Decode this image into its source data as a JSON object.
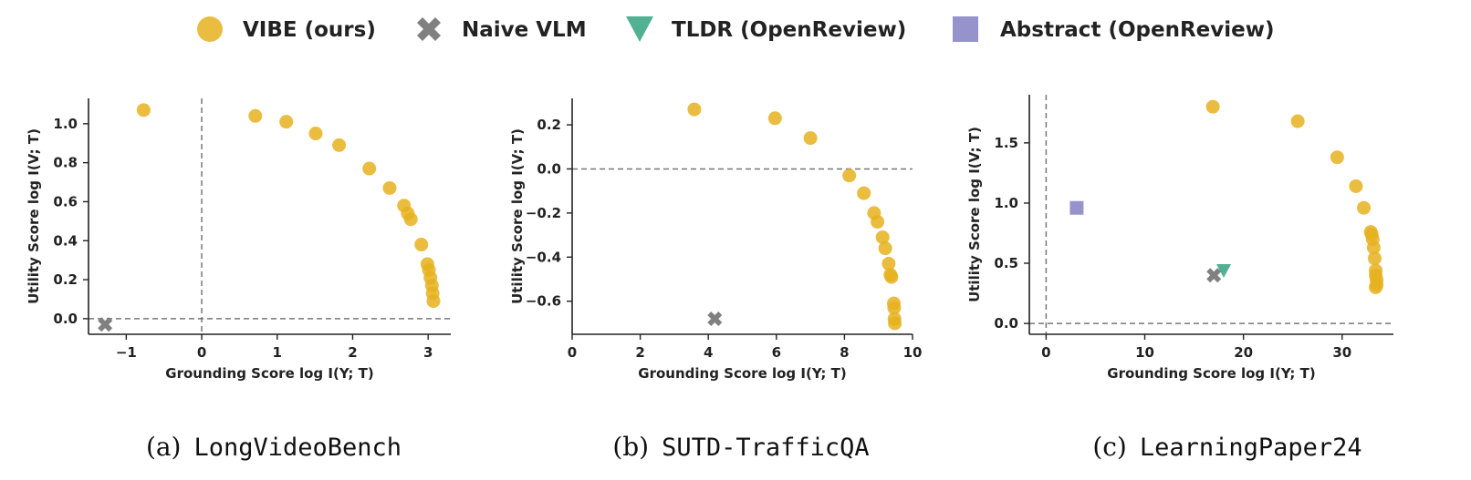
{
  "legend": [
    {
      "label": "VIBE (ours)",
      "marker": "circle",
      "color": "#E6B21E"
    },
    {
      "label": "Naive VLM",
      "marker": "x",
      "color": "#808080"
    },
    {
      "label": "TLDR (OpenReview)",
      "marker": "triangle-down",
      "color": "#3FA886"
    },
    {
      "label": "Abstract (OpenReview)",
      "marker": "square",
      "color": "#8A86C6"
    }
  ],
  "chart_data": [
    {
      "type": "scatter",
      "caption_prefix": "(a)",
      "caption_name": "LongVideoBench",
      "xlabel": "Grounding Score log I(Y; T)",
      "ylabel": "Utility Score log I(V; T)",
      "xlim": [
        -1.5,
        3.3
      ],
      "ylim": [
        -0.08,
        1.13
      ],
      "xticks": [
        -1,
        0,
        1,
        2,
        3
      ],
      "xtick_labels": [
        "−1",
        "0",
        "1",
        "2",
        "3"
      ],
      "yticks": [
        0.0,
        0.2,
        0.4,
        0.6,
        0.8,
        1.0
      ],
      "ytick_labels": [
        "0.0",
        "0.2",
        "0.4",
        "0.6",
        "0.8",
        "1.0"
      ],
      "refline_x": 0,
      "refline_y": 0,
      "grid": false,
      "series": [
        {
          "name": "VIBE (ours)",
          "marker": "circle",
          "x": [
            -0.77,
            0.71,
            1.12,
            1.51,
            1.82,
            2.22,
            2.49,
            2.68,
            2.73,
            2.77,
            2.91,
            2.99,
            3.01,
            3.03,
            3.05,
            3.06,
            3.07
          ],
          "y": [
            1.07,
            1.04,
            1.01,
            0.95,
            0.89,
            0.77,
            0.67,
            0.58,
            0.54,
            0.51,
            0.38,
            0.28,
            0.25,
            0.21,
            0.17,
            0.13,
            0.09
          ]
        },
        {
          "name": "Naive VLM",
          "marker": "x",
          "x": [
            -1.28
          ],
          "y": [
            -0.03
          ]
        }
      ]
    },
    {
      "type": "scatter",
      "caption_prefix": "(b)",
      "caption_name": "SUTD-TrafficQA",
      "xlabel": "Grounding Score log I(Y; T)",
      "ylabel": "Utility Score log I(V; T)",
      "xlim": [
        0,
        10
      ],
      "ylim": [
        -0.75,
        0.32
      ],
      "xticks": [
        0,
        2,
        4,
        6,
        8,
        10
      ],
      "xtick_labels": [
        "0",
        "2",
        "4",
        "6",
        "8",
        "10"
      ],
      "yticks": [
        -0.6,
        -0.4,
        -0.2,
        0.0,
        0.2
      ],
      "ytick_labels": [
        "−0.6",
        "−0.4",
        "−0.2",
        "0.0",
        "0.2"
      ],
      "refline_y": 0,
      "grid": false,
      "series": [
        {
          "name": "VIBE (ours)",
          "marker": "circle",
          "x": [
            3.59,
            5.96,
            7.0,
            8.14,
            8.57,
            8.87,
            8.97,
            9.12,
            9.2,
            9.3,
            9.35,
            9.38,
            9.45,
            9.46,
            9.47,
            9.48
          ],
          "y": [
            0.27,
            0.23,
            0.14,
            -0.03,
            -0.11,
            -0.2,
            -0.24,
            -0.31,
            -0.36,
            -0.43,
            -0.48,
            -0.49,
            -0.61,
            -0.63,
            -0.68,
            -0.7
          ]
        },
        {
          "name": "Naive VLM",
          "marker": "x",
          "x": [
            4.19
          ],
          "y": [
            -0.68
          ]
        }
      ]
    },
    {
      "type": "scatter",
      "caption_prefix": "(c)",
      "caption_name": "LearningPaper24",
      "xlabel": "Grounding Score log I(Y; T)",
      "ylabel": "Utility Score log I(V; T)",
      "xlim": [
        -1.7,
        35.2
      ],
      "ylim": [
        -0.09,
        1.9
      ],
      "xticks": [
        0,
        10,
        20,
        30
      ],
      "xtick_labels": [
        "0",
        "10",
        "20",
        "30"
      ],
      "yticks": [
        0.0,
        0.5,
        1.0,
        1.5
      ],
      "ytick_labels": [
        "0.0",
        "0.5",
        "1.0",
        "1.5"
      ],
      "refline_x": 0,
      "refline_y": 0,
      "grid": false,
      "series": [
        {
          "name": "VIBE (ours)",
          "marker": "circle",
          "x": [
            16.9,
            25.5,
            29.5,
            31.4,
            32.2,
            32.9,
            33.0,
            33.1,
            33.2,
            33.3,
            33.4,
            33.4,
            33.5,
            33.5,
            33.4
          ],
          "y": [
            1.8,
            1.68,
            1.38,
            1.14,
            0.96,
            0.76,
            0.74,
            0.7,
            0.63,
            0.54,
            0.44,
            0.4,
            0.36,
            0.32,
            0.3
          ]
        },
        {
          "name": "Naive VLM",
          "marker": "x",
          "x": [
            17.0
          ],
          "y": [
            0.4
          ]
        },
        {
          "name": "TLDR (OpenReview)",
          "marker": "triangle-down",
          "x": [
            18.0
          ],
          "y": [
            0.44
          ]
        },
        {
          "name": "Abstract (OpenReview)",
          "marker": "square",
          "x": [
            3.1
          ],
          "y": [
            0.96
          ]
        }
      ]
    }
  ]
}
